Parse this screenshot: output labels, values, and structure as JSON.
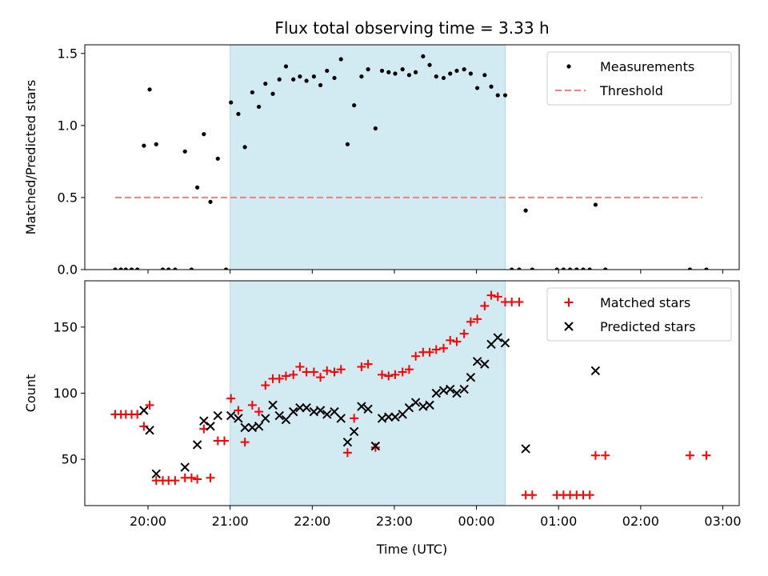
{
  "chart_data": {
    "title": "Flux total observing time = 3.33 h",
    "xlabel": "Time (UTC)",
    "x_unit": "hours since 20:00 UTC",
    "xlim": [
      -0.77,
      7.2
    ],
    "xticks": [
      {
        "value": 0,
        "label": "20:00"
      },
      {
        "value": 1,
        "label": "21:00"
      },
      {
        "value": 2,
        "label": "22:00"
      },
      {
        "value": 3,
        "label": "23:00"
      },
      {
        "value": 4,
        "label": "00:00"
      },
      {
        "value": 5,
        "label": "01:00"
      },
      {
        "value": 6,
        "label": "02:00"
      },
      {
        "value": 7,
        "label": "03:00"
      }
    ],
    "observing_window": {
      "start": 1.0,
      "end": 4.35,
      "color": "#add8e6"
    },
    "panels": [
      {
        "type": "scatter",
        "ylabel": "Matched/Predicted stars",
        "ylim": [
          0,
          1.56
        ],
        "yticks": [
          {
            "value": 0,
            "label": "0.0"
          },
          {
            "value": 0.5,
            "label": "0.5"
          },
          {
            "value": 1.0,
            "label": "1.0"
          },
          {
            "value": 1.5,
            "label": "1.5"
          }
        ],
        "threshold": {
          "value": 0.5,
          "x_range": [
            -0.4,
            6.75
          ],
          "color": "#f08080"
        },
        "legend": {
          "position": "top-right",
          "entries": [
            "Measurements",
            "Threshold"
          ]
        },
        "series": [
          {
            "name": "Measurements",
            "marker": "dot",
            "color": "#000000",
            "points": [
              [
                -0.4,
                0
              ],
              [
                -0.33,
                0
              ],
              [
                -0.27,
                0
              ],
              [
                -0.2,
                0
              ],
              [
                -0.13,
                0
              ],
              [
                -0.05,
                0.86
              ],
              [
                0.02,
                1.25
              ],
              [
                0.1,
                0.87
              ],
              [
                0.18,
                0
              ],
              [
                0.25,
                0
              ],
              [
                0.33,
                0
              ],
              [
                0.45,
                0.82
              ],
              [
                0.53,
                0
              ],
              [
                0.6,
                0.57
              ],
              [
                0.68,
                0.94
              ],
              [
                0.76,
                0.47
              ],
              [
                0.85,
                0.77
              ],
              [
                0.95,
                0
              ],
              [
                1.01,
                1.16
              ],
              [
                1.1,
                1.08
              ],
              [
                1.18,
                0.85
              ],
              [
                1.27,
                1.23
              ],
              [
                1.35,
                1.13
              ],
              [
                1.43,
                1.29
              ],
              [
                1.52,
                1.22
              ],
              [
                1.6,
                1.32
              ],
              [
                1.68,
                1.41
              ],
              [
                1.77,
                1.32
              ],
              [
                1.85,
                1.34
              ],
              [
                1.93,
                1.31
              ],
              [
                2.02,
                1.34
              ],
              [
                2.1,
                1.28
              ],
              [
                2.18,
                1.38
              ],
              [
                2.27,
                1.33
              ],
              [
                2.35,
                1.46
              ],
              [
                2.43,
                0.87
              ],
              [
                2.51,
                1.14
              ],
              [
                2.6,
                1.34
              ],
              [
                2.68,
                1.39
              ],
              [
                2.77,
                0.98
              ],
              [
                2.85,
                1.38
              ],
              [
                2.93,
                1.37
              ],
              [
                3.01,
                1.36
              ],
              [
                3.1,
                1.39
              ],
              [
                3.18,
                1.35
              ],
              [
                3.26,
                1.37
              ],
              [
                3.35,
                1.48
              ],
              [
                3.43,
                1.42
              ],
              [
                3.51,
                1.34
              ],
              [
                3.6,
                1.33
              ],
              [
                3.68,
                1.36
              ],
              [
                3.76,
                1.38
              ],
              [
                3.85,
                1.39
              ],
              [
                3.93,
                1.36
              ],
              [
                4.01,
                1.26
              ],
              [
                4.1,
                1.35
              ],
              [
                4.18,
                1.27
              ],
              [
                4.26,
                1.21
              ],
              [
                4.35,
                1.21
              ],
              [
                4.43,
                0
              ],
              [
                4.52,
                0
              ],
              [
                4.6,
                0.41
              ],
              [
                4.68,
                0
              ],
              [
                4.98,
                0
              ],
              [
                5.06,
                0
              ],
              [
                5.14,
                0
              ],
              [
                5.22,
                0
              ],
              [
                5.3,
                0
              ],
              [
                5.38,
                0
              ],
              [
                5.45,
                0.45
              ],
              [
                5.57,
                0
              ],
              [
                6.6,
                0
              ],
              [
                6.8,
                0
              ]
            ]
          }
        ]
      },
      {
        "type": "scatter",
        "ylabel": "Count",
        "ylim": [
          15,
          185
        ],
        "yticks": [
          {
            "value": 50,
            "label": "50"
          },
          {
            "value": 100,
            "label": "100"
          },
          {
            "value": 150,
            "label": "150"
          }
        ],
        "legend": {
          "position": "top-right",
          "entries": [
            "Matched stars",
            "Predicted stars"
          ]
        },
        "series": [
          {
            "name": "Matched stars",
            "marker": "plus",
            "color": "#ff0000",
            "points": [
              [
                -0.4,
                84
              ],
              [
                -0.33,
                84
              ],
              [
                -0.27,
                84
              ],
              [
                -0.2,
                84
              ],
              [
                -0.13,
                84
              ],
              [
                -0.05,
                75
              ],
              [
                0.02,
                91
              ],
              [
                0.1,
                34
              ],
              [
                0.18,
                34
              ],
              [
                0.25,
                34
              ],
              [
                0.33,
                34
              ],
              [
                0.45,
                36
              ],
              [
                0.53,
                36
              ],
              [
                0.6,
                35
              ],
              [
                0.68,
                73
              ],
              [
                0.76,
                36
              ],
              [
                0.85,
                64
              ],
              [
                0.93,
                64
              ],
              [
                1.01,
                96
              ],
              [
                1.1,
                87
              ],
              [
                1.18,
                63
              ],
              [
                1.27,
                91
              ],
              [
                1.35,
                86
              ],
              [
                1.43,
                106
              ],
              [
                1.52,
                111
              ],
              [
                1.6,
                111
              ],
              [
                1.68,
                113
              ],
              [
                1.77,
                114
              ],
              [
                1.85,
                120
              ],
              [
                1.93,
                116
              ],
              [
                2.02,
                116
              ],
              [
                2.1,
                112
              ],
              [
                2.18,
                117
              ],
              [
                2.27,
                116
              ],
              [
                2.35,
                118
              ],
              [
                2.43,
                55
              ],
              [
                2.51,
                81
              ],
              [
                2.6,
                120
              ],
              [
                2.68,
                122
              ],
              [
                2.77,
                59
              ],
              [
                2.85,
                114
              ],
              [
                2.93,
                113
              ],
              [
                3.01,
                114
              ],
              [
                3.1,
                116
              ],
              [
                3.18,
                118
              ],
              [
                3.26,
                128
              ],
              [
                3.35,
                131
              ],
              [
                3.43,
                131
              ],
              [
                3.51,
                133
              ],
              [
                3.6,
                134
              ],
              [
                3.68,
                140
              ],
              [
                3.76,
                139
              ],
              [
                3.85,
                145
              ],
              [
                3.93,
                154
              ],
              [
                4.01,
                156
              ],
              [
                4.1,
                166
              ],
              [
                4.18,
                174
              ],
              [
                4.26,
                173
              ],
              [
                4.35,
                169
              ],
              [
                4.43,
                169
              ],
              [
                4.52,
                169
              ],
              [
                4.6,
                23
              ],
              [
                4.68,
                23
              ],
              [
                4.98,
                23
              ],
              [
                5.06,
                23
              ],
              [
                5.14,
                23
              ],
              [
                5.22,
                23
              ],
              [
                5.3,
                23
              ],
              [
                5.38,
                23
              ],
              [
                5.45,
                53
              ],
              [
                5.57,
                53
              ],
              [
                6.6,
                53
              ],
              [
                6.8,
                53
              ]
            ]
          },
          {
            "name": "Predicted stars",
            "marker": "x",
            "color": "#000000",
            "points": [
              [
                -0.05,
                87
              ],
              [
                0.02,
                72
              ],
              [
                0.1,
                39
              ],
              [
                0.45,
                44
              ],
              [
                0.6,
                61
              ],
              [
                0.68,
                79
              ],
              [
                0.76,
                75
              ],
              [
                0.85,
                83
              ],
              [
                1.01,
                83
              ],
              [
                1.1,
                81
              ],
              [
                1.18,
                74
              ],
              [
                1.27,
                74
              ],
              [
                1.35,
                75
              ],
              [
                1.43,
                81
              ],
              [
                1.52,
                91
              ],
              [
                1.6,
                83
              ],
              [
                1.68,
                80
              ],
              [
                1.77,
                86
              ],
              [
                1.85,
                89
              ],
              [
                1.93,
                89
              ],
              [
                2.02,
                86
              ],
              [
                2.1,
                87
              ],
              [
                2.18,
                84
              ],
              [
                2.27,
                86
              ],
              [
                2.35,
                81
              ],
              [
                2.43,
                63
              ],
              [
                2.51,
                71
              ],
              [
                2.6,
                90
              ],
              [
                2.68,
                88
              ],
              [
                2.77,
                60
              ],
              [
                2.85,
                81
              ],
              [
                2.93,
                82
              ],
              [
                3.01,
                82
              ],
              [
                3.1,
                84
              ],
              [
                3.18,
                89
              ],
              [
                3.26,
                93
              ],
              [
                3.35,
                90
              ],
              [
                3.43,
                91
              ],
              [
                3.51,
                100
              ],
              [
                3.6,
                102
              ],
              [
                3.68,
                103
              ],
              [
                3.76,
                100
              ],
              [
                3.85,
                103
              ],
              [
                3.93,
                112
              ],
              [
                4.01,
                124
              ],
              [
                4.1,
                122
              ],
              [
                4.18,
                137
              ],
              [
                4.26,
                142
              ],
              [
                4.35,
                138
              ],
              [
                4.6,
                58
              ],
              [
                5.45,
                117
              ]
            ]
          }
        ]
      }
    ]
  }
}
